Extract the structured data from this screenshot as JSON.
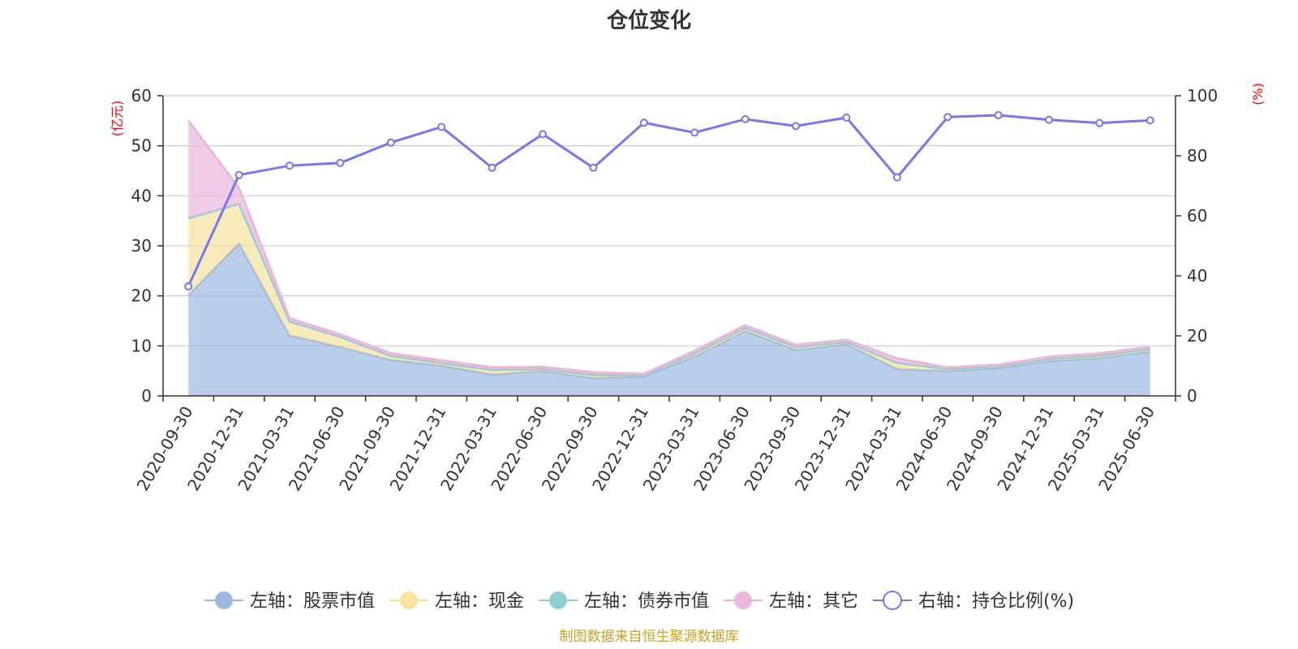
{
  "chart_data": {
    "type": "area",
    "title": "仓位变化",
    "left_axis_unit": "(亿元)",
    "right_axis_unit": "(%)",
    "x": [
      "2020-09-30",
      "2020-12-31",
      "2021-03-31",
      "2021-06-30",
      "2021-09-30",
      "2021-12-31",
      "2022-03-31",
      "2022-06-30",
      "2022-09-30",
      "2022-12-31",
      "2023-03-31",
      "2023-06-30",
      "2023-09-30",
      "2023-12-31",
      "2024-03-31",
      "2024-06-30",
      "2024-09-30",
      "2024-12-31",
      "2025-03-31",
      "2025-06-30"
    ],
    "ylim_left": [
      0,
      60
    ],
    "yticks_left": [
      0,
      10,
      20,
      30,
      40,
      50,
      60
    ],
    "ylim_right": [
      0,
      100
    ],
    "yticks_right": [
      0,
      20,
      40,
      60,
      80,
      100
    ],
    "grid": true,
    "legend_position": "bottom",
    "series": [
      {
        "name": "左轴：股票市值",
        "axis": "left",
        "stack": true,
        "color": "#9db8e1",
        "values": [
          20.2,
          30.5,
          12.1,
          9.8,
          7.2,
          6.1,
          4.3,
          5.0,
          3.6,
          3.9,
          7.9,
          13.0,
          9.2,
          10.4,
          5.4,
          5.0,
          5.6,
          7.0,
          7.6,
          8.9
        ]
      },
      {
        "name": "左轴：现金",
        "axis": "left",
        "stack": true,
        "color": "#f5e39e",
        "values": [
          15.3,
          7.9,
          2.8,
          2.0,
          0.8,
          0.5,
          0.9,
          0.4,
          0.6,
          0.2,
          0.6,
          0.6,
          0.6,
          0.4,
          1.2,
          0.4,
          0.3,
          0.4,
          0.5,
          0.5
        ]
      },
      {
        "name": "左轴：债券市值",
        "axis": "left",
        "stack": true,
        "color": "#8fd0cf",
        "values": [
          0,
          0,
          0,
          0,
          0,
          0,
          0,
          0,
          0,
          0,
          0,
          0,
          0,
          0,
          0,
          0,
          0,
          0,
          0,
          0
        ]
      },
      {
        "name": "左轴：其它",
        "axis": "left",
        "stack": true,
        "color": "#eab8dc",
        "values": [
          19.5,
          3.2,
          0.6,
          0.5,
          0.5,
          0.5,
          0.5,
          0.4,
          0.5,
          0.3,
          0.5,
          0.5,
          0.4,
          0.4,
          0.9,
          0.3,
          0.3,
          0.4,
          0.4,
          0.4
        ]
      },
      {
        "name": "右轴：持仓比例(%)",
        "axis": "right",
        "color": "#7777ee",
        "values": [
          36.5,
          73.6,
          76.7,
          77.6,
          84.4,
          89.6,
          76.0,
          87.2,
          76.0,
          91.0,
          87.7,
          92.2,
          89.9,
          92.7,
          72.8,
          92.9,
          93.5,
          92.0,
          90.9,
          91.8
        ]
      }
    ]
  },
  "source_note": "制图数据来自恒生聚源数据库"
}
